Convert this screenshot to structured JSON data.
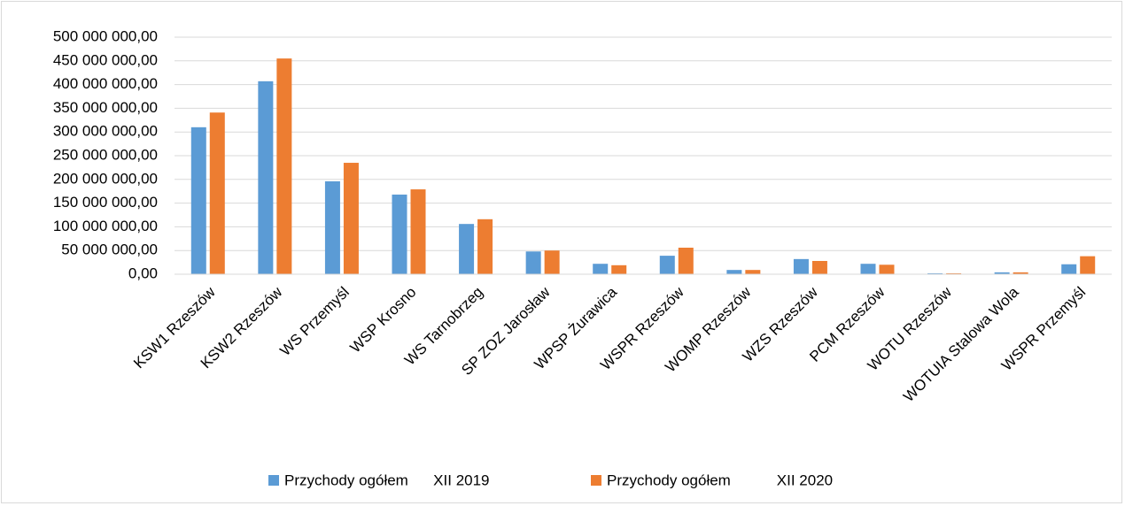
{
  "chart_data": {
    "type": "bar",
    "categories": [
      "KSW1 Rzeszów",
      "KSW2 Rzeszów",
      "WS Przemyśl",
      "WSP Krosno",
      "WS Tarnobrzeg",
      "SP ZOZ Jarosław",
      "WPSP Żurawica",
      "WSPR Rzeszów",
      "WOMP Rzeszów",
      "WZS Rzeszów",
      "PCM Rzeszów",
      "WOTU Rzeszów",
      "WOTUIA Stalowa Wola",
      "WSPR Przemyśl"
    ],
    "series": [
      {
        "name": "Przychody ogółem      XII 2019",
        "color": "#5b9bd5",
        "values": [
          310000000,
          407000000,
          196000000,
          168000000,
          106000000,
          48000000,
          22000000,
          39000000,
          9000000,
          32000000,
          22000000,
          2000000,
          4000000,
          21000000
        ]
      },
      {
        "name": "Przychody ogółem           XII 2020",
        "color": "#ed7d31",
        "values": [
          341000000,
          455000000,
          235000000,
          179000000,
          116000000,
          50000000,
          19000000,
          56000000,
          9000000,
          28000000,
          20000000,
          2000000,
          4000000,
          38000000
        ]
      }
    ],
    "ylim": [
      0,
      500000000
    ],
    "yticks": [
      {
        "value": 0,
        "label": "0,00"
      },
      {
        "value": 50000000,
        "label": "50 000 000,00"
      },
      {
        "value": 100000000,
        "label": "100 000 000,00"
      },
      {
        "value": 150000000,
        "label": "150 000 000,00"
      },
      {
        "value": 200000000,
        "label": "200 000 000,00"
      },
      {
        "value": 250000000,
        "label": "250 000 000,00"
      },
      {
        "value": 300000000,
        "label": "300 000 000,00"
      },
      {
        "value": 350000000,
        "label": "350 000 000,00"
      },
      {
        "value": 400000000,
        "label": "400 000 000,00"
      },
      {
        "value": 450000000,
        "label": "450 000 000,00"
      },
      {
        "value": 500000000,
        "label": "500 000 000,00"
      }
    ],
    "grid": true,
    "legend": "bottom"
  }
}
